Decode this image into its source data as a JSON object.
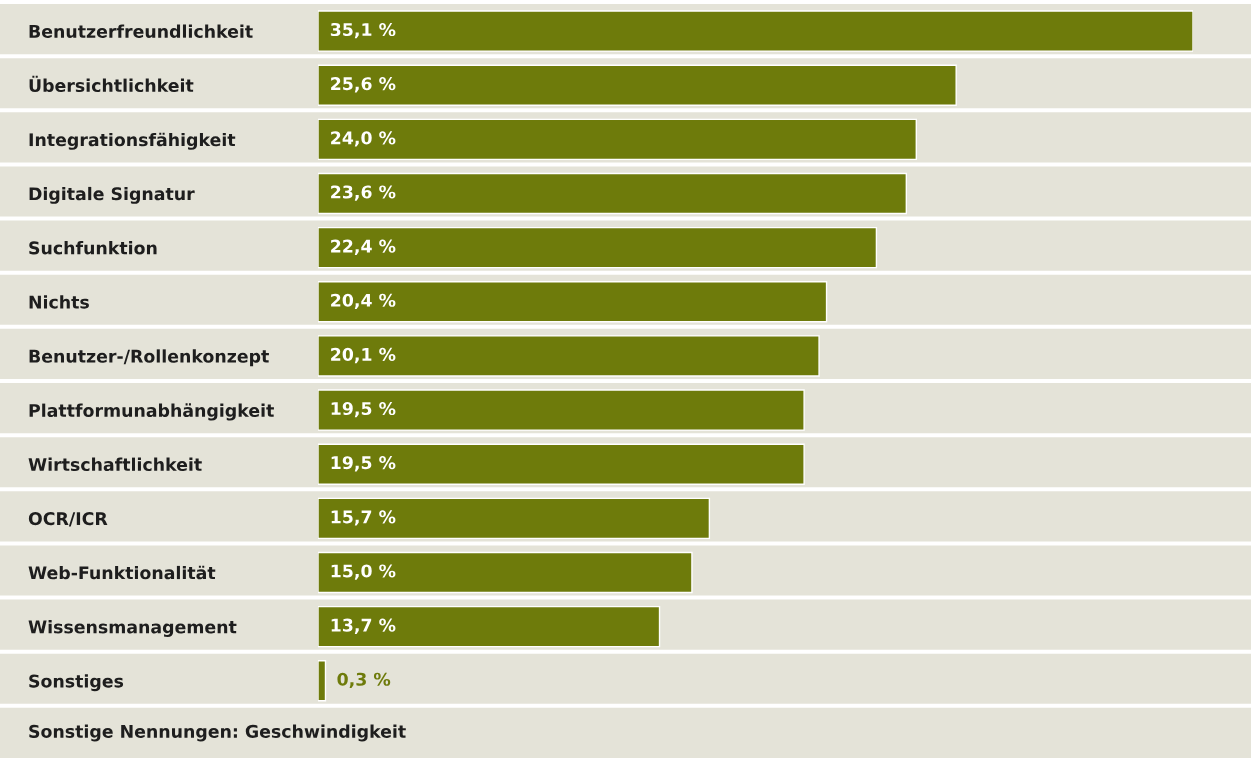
{
  "chart_data": {
    "type": "bar",
    "orientation": "horizontal",
    "categories": [
      "Benutzerfreundlichkeit",
      "Übersichtlichkeit",
      "Integrationsfähigkeit",
      "Digitale Signatur",
      "Suchfunktion",
      "Nichts",
      "Benutzer-/Rollenkonzept",
      "Plattformunabhängigkeit",
      "Wirtschaftlichkeit",
      "OCR/ICR",
      "Web-Funktionalität",
      "Wissensmanagement",
      "Sonstiges"
    ],
    "values": [
      35.1,
      25.6,
      24.0,
      23.6,
      22.4,
      20.4,
      20.1,
      19.5,
      19.5,
      15.7,
      15.0,
      13.7,
      0.3
    ],
    "value_labels": [
      "35,1 %",
      "25,6 %",
      "24,0 %",
      "23,6 %",
      "22,4 %",
      "20,4 %",
      "20,1 %",
      "19,5 %",
      "19,5 %",
      "15,7 %",
      "15,0 %",
      "13,7 %",
      "0,3 %"
    ],
    "color": "#6e7b0b",
    "annotations": [
      "Sonstige Nennungen: Geschwindigkeit"
    ],
    "tick_labels": "y",
    "grid": false,
    "legend": false
  }
}
